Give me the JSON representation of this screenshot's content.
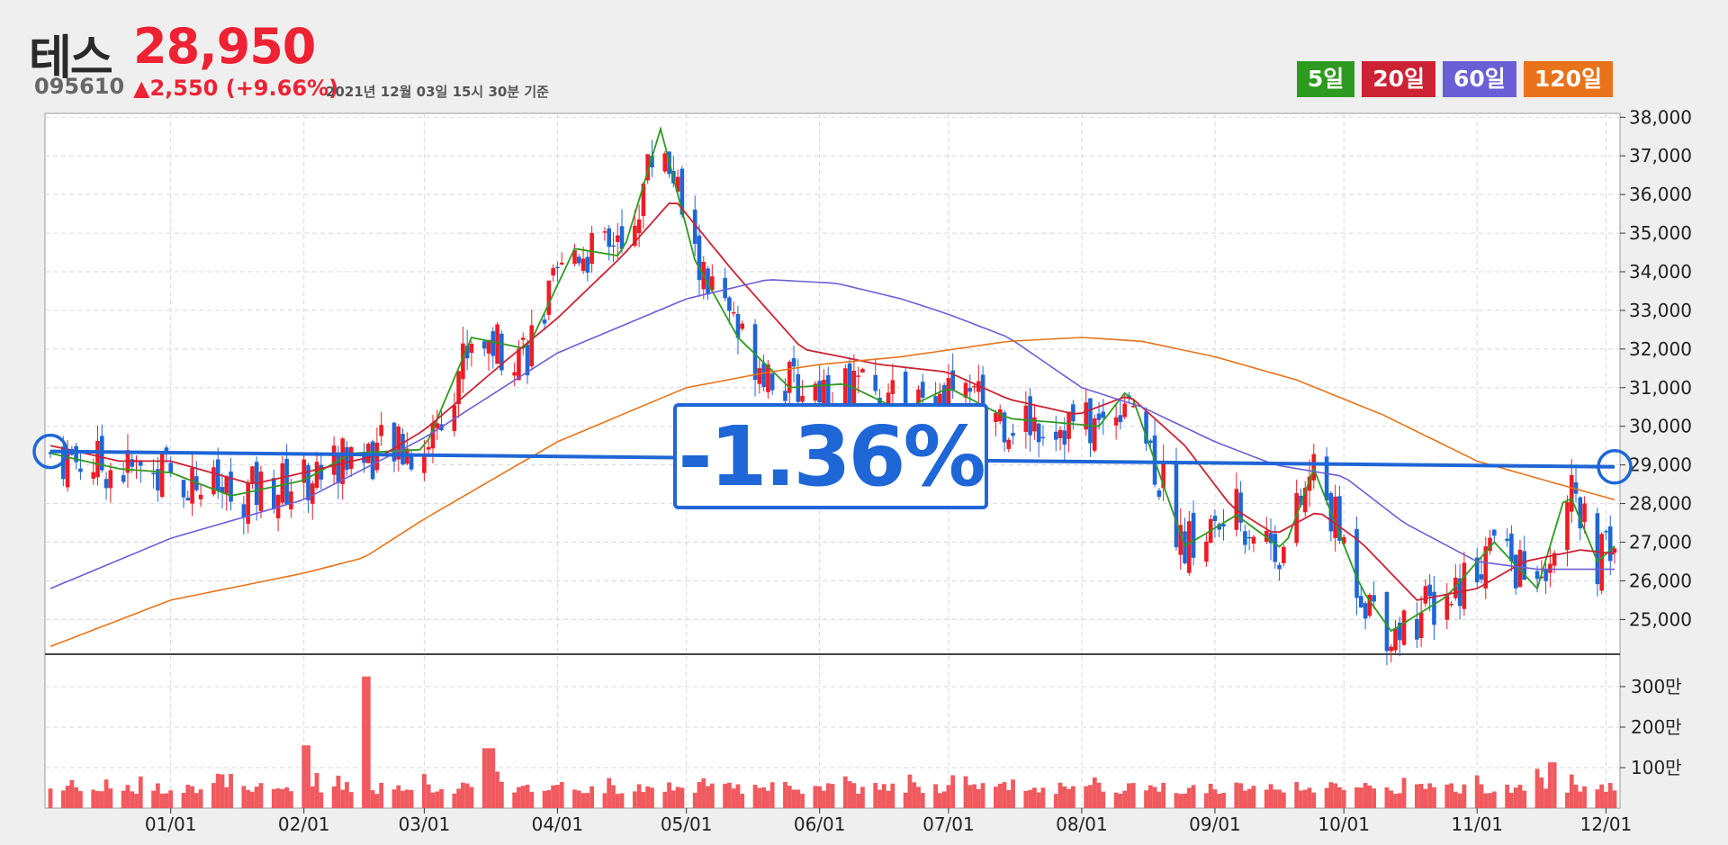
{
  "header": {
    "name": "테스",
    "price": "28,950",
    "code": "095610",
    "change": "▲2,550 (+9.66%)",
    "timestamp": "2021년 12월 03일 15시 30분 기준"
  },
  "legend": [
    {
      "label": "5일",
      "color": "#2e9a1f"
    },
    {
      "label": "20일",
      "color": "#cc2233"
    },
    {
      "label": "60일",
      "color": "#6a5fd6"
    },
    {
      "label": "120일",
      "color": "#e8731a"
    }
  ],
  "callout": {
    "text": "-1.36%",
    "color": "#1f66d6"
  },
  "chart_data": {
    "type": "line",
    "x_labels": [
      "01/01",
      "02/01",
      "03/01",
      "04/01",
      "05/01",
      "06/01",
      "07/01",
      "08/01",
      "09/01",
      "10/01",
      "11/01",
      "12/01"
    ],
    "x_range": [
      "2020-12-04",
      "2021-12-03"
    ],
    "price_axis": {
      "ticks": [
        25000,
        26000,
        27000,
        28000,
        29000,
        30000,
        31000,
        32000,
        33000,
        34000,
        35000,
        36000,
        37000,
        38000
      ],
      "tick_labels": [
        "25,000",
        "26,000",
        "27,000",
        "28,000",
        "29,000",
        "30,000",
        "31,000",
        "32,000",
        "33,000",
        "34,000",
        "35,000",
        "36,000",
        "37,000",
        "38,000"
      ],
      "range": [
        24100,
        38100
      ]
    },
    "volume_axis": {
      "ticks": [
        1000000,
        2000000,
        3000000
      ],
      "tick_labels": [
        "100만",
        "200만",
        "300만"
      ],
      "range": [
        0,
        3800000
      ]
    },
    "series": [
      {
        "name": "5일",
        "color": "#2e9a1f",
        "x": [
          "2020-12-04",
          "2020-12-20",
          "2021-01-01",
          "2021-01-15",
          "2021-02-01",
          "2021-02-12",
          "2021-03-01",
          "2021-03-12",
          "2021-03-25",
          "2021-04-05",
          "2021-04-16",
          "2021-04-25",
          "2021-05-03",
          "2021-05-13",
          "2021-05-25",
          "2021-06-07",
          "2021-06-20",
          "2021-07-01",
          "2021-07-15",
          "2021-07-26",
          "2021-08-05",
          "2021-08-12",
          "2021-08-25",
          "2021-09-06",
          "2021-09-17",
          "2021-09-24",
          "2021-10-05",
          "2021-10-12",
          "2021-10-25",
          "2021-11-05",
          "2021-11-15",
          "2021-11-22",
          "2021-11-29",
          "2021-12-03"
        ],
        "values": [
          29300,
          28900,
          28800,
          28200,
          28600,
          29300,
          29400,
          32300,
          32000,
          34600,
          34400,
          37700,
          34300,
          32300,
          31000,
          31100,
          30400,
          31000,
          30200,
          30100,
          30000,
          31000,
          26900,
          27700,
          26800,
          28900,
          25800,
          24700,
          25600,
          27000,
          25800,
          28400,
          26500,
          26900
        ]
      },
      {
        "name": "20일",
        "color": "#cc2233",
        "x": [
          "2020-12-04",
          "2020-12-20",
          "2021-01-01",
          "2021-01-20",
          "2021-02-01",
          "2021-02-20",
          "2021-03-01",
          "2021-03-20",
          "2021-04-01",
          "2021-04-16",
          "2021-04-28",
          "2021-05-12",
          "2021-05-28",
          "2021-06-15",
          "2021-07-01",
          "2021-07-15",
          "2021-07-31",
          "2021-08-12",
          "2021-08-25",
          "2021-09-05",
          "2021-09-15",
          "2021-09-25",
          "2021-10-05",
          "2021-10-18",
          "2021-11-01",
          "2021-11-12",
          "2021-11-25",
          "2021-12-03"
        ],
        "values": [
          29500,
          29100,
          29100,
          28500,
          28800,
          29300,
          29900,
          31700,
          32800,
          34400,
          35900,
          34000,
          32000,
          31600,
          31400,
          30700,
          30300,
          30800,
          29500,
          27900,
          27200,
          27800,
          27000,
          25500,
          25800,
          26500,
          26800,
          26700
        ]
      },
      {
        "name": "60일",
        "color": "#6a5fd6",
        "x": [
          "2020-12-04",
          "2021-01-01",
          "2021-02-01",
          "2021-03-01",
          "2021-04-01",
          "2021-05-01",
          "2021-05-20",
          "2021-06-05",
          "2021-06-20",
          "2021-07-01",
          "2021-07-15",
          "2021-08-01",
          "2021-08-15",
          "2021-09-01",
          "2021-09-15",
          "2021-10-01",
          "2021-10-15",
          "2021-11-01",
          "2021-11-15",
          "2021-12-03"
        ],
        "values": [
          25800,
          27100,
          28100,
          29700,
          31900,
          33300,
          33800,
          33700,
          33300,
          32900,
          32300,
          31000,
          30500,
          29600,
          29000,
          28700,
          27500,
          26500,
          26300,
          26300
        ]
      },
      {
        "name": "120일",
        "color": "#e8731a",
        "x": [
          "2020-12-04",
          "2021-01-01",
          "2021-02-01",
          "2021-02-15",
          "2021-03-01",
          "2021-04-01",
          "2021-05-01",
          "2021-05-20",
          "2021-06-01",
          "2021-06-20",
          "2021-07-15",
          "2021-08-01",
          "2021-08-15",
          "2021-09-01",
          "2021-09-20",
          "2021-10-10",
          "2021-11-01",
          "2021-11-20",
          "2021-12-03"
        ],
        "values": [
          24300,
          25500,
          26200,
          26600,
          27600,
          29600,
          31000,
          31400,
          31600,
          31800,
          32200,
          32300,
          32200,
          31800,
          31200,
          30300,
          29100,
          28500,
          28100
        ]
      }
    ],
    "trendline": {
      "x": [
        "2020-12-04",
        "2021-12-03"
      ],
      "values": [
        29350,
        28950
      ],
      "color": "#1f66d6"
    },
    "candles": [
      {
        "x": "2021-01-12",
        "open": 29000,
        "close": 30500
      },
      {
        "x": "2021-02-16",
        "open": 29500,
        "close": 32800
      },
      {
        "x": "2021-03-15",
        "open": 32000,
        "close": 34500
      },
      {
        "x": "2021-04-20",
        "open": 36500,
        "close": 37700
      },
      {
        "x": "2021-06-01",
        "open": 31200,
        "close": 32200
      },
      {
        "x": "2021-07-01",
        "open": 30500,
        "close": 31300
      },
      {
        "x": "2021-08-06",
        "open": 31000,
        "close": 32300
      },
      {
        "x": "2021-09-17",
        "open": 28800,
        "close": 29600
      },
      {
        "x": "2021-11-18",
        "open": 28000,
        "close": 29800
      },
      {
        "x": "2021-12-03",
        "open": 26400,
        "close": 28950
      }
    ],
    "volume_peaks": [
      {
        "x": "2021-02-15",
        "value": 3250000
      },
      {
        "x": "2021-03-16",
        "value": 1480000
      },
      {
        "x": "2021-02-01",
        "value": 1550000
      },
      {
        "x": "2021-11-19",
        "value": 1130000
      }
    ],
    "grid": true
  }
}
